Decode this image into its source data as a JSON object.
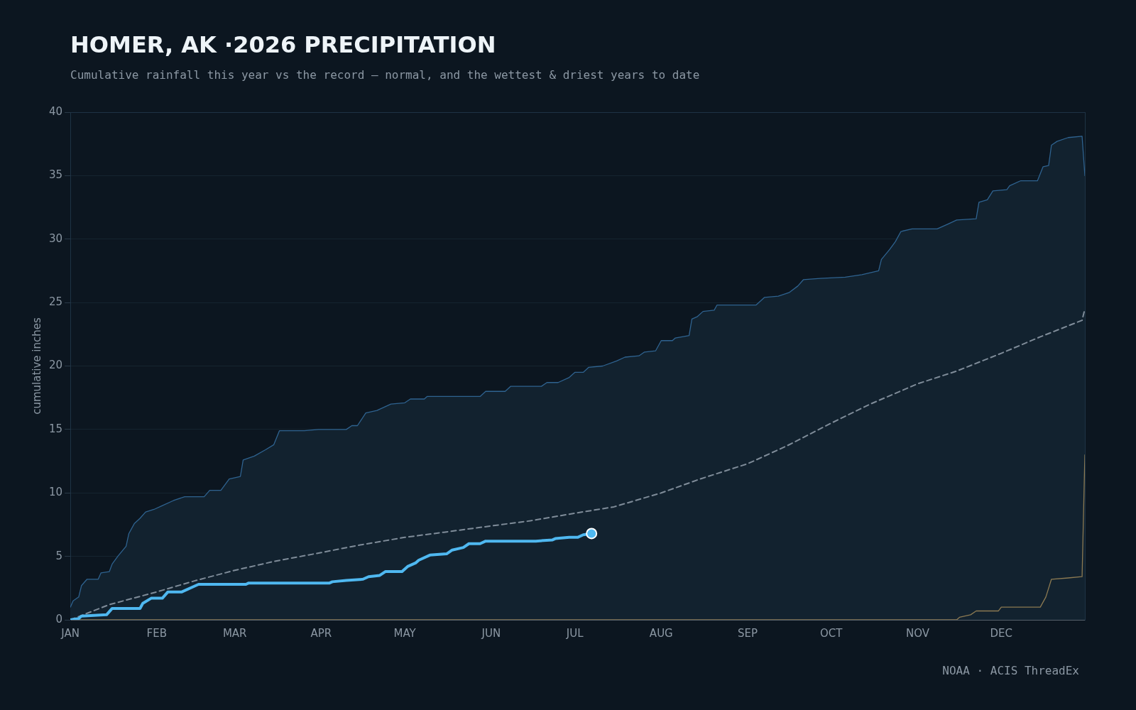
{
  "chart_data": {
    "type": "line",
    "title": "HOMER, AK ·2026 PRECIPITATION",
    "subtitle": "Cumulative rainfall this year vs the record — normal, and the wettest & driest years to date",
    "ylabel": "cumulative inches",
    "annotations": [
      "NOAA · ACIS ThreadEx"
    ],
    "xlim": [
      "--01-01",
      "--12-31"
    ],
    "xticks": [
      {
        "value": "--01-01",
        "label": "JAN"
      },
      {
        "value": "--02-01",
        "label": "FEB"
      },
      {
        "value": "--03-01",
        "label": "MAR"
      },
      {
        "value": "--04-01",
        "label": "APR"
      },
      {
        "value": "--05-01",
        "label": "MAY"
      },
      {
        "value": "--06-01",
        "label": "JUN"
      },
      {
        "value": "--07-01",
        "label": "JUL"
      },
      {
        "value": "--08-01",
        "label": "AUG"
      },
      {
        "value": "--09-01",
        "label": "SEP"
      },
      {
        "value": "--10-01",
        "label": "OCT"
      },
      {
        "value": "--11-01",
        "label": "NOV"
      },
      {
        "value": "--12-01",
        "label": "DEC"
      }
    ],
    "ylim": [
      0,
      40
    ],
    "yticks": [
      0,
      5,
      10,
      15,
      20,
      25,
      30,
      35,
      40
    ],
    "grid": "y",
    "legend": false,
    "series": [
      {
        "type": "area",
        "color": "#2f6390",
        "x": [
          "--01-01",
          "--01-02",
          "--01-04",
          "--01-05",
          "--01-07",
          "--01-11",
          "--01-12",
          "--01-15",
          "--01-16",
          "--01-18",
          "--01-21",
          "--01-22",
          "--01-24",
          "--01-26",
          "--01-28",
          "--01-31",
          "--02-03",
          "--02-07",
          "--02-11",
          "--02-18",
          "--02-20",
          "--02-24",
          "--02-27",
          "--03-03",
          "--03-04",
          "--03-08",
          "--03-12",
          "--03-15",
          "--03-17",
          "--03-26",
          "--03-31",
          "--04-10",
          "--04-12",
          "--04-14",
          "--04-17",
          "--04-21",
          "--04-26",
          "--05-01",
          "--05-03",
          "--05-08",
          "--05-09",
          "--05-28",
          "--05-30",
          "--06-06",
          "--06-08",
          "--06-19",
          "--06-21",
          "--06-25",
          "--06-29",
          "--07-01",
          "--07-04",
          "--07-06",
          "--07-11",
          "--07-16",
          "--07-19",
          "--07-24",
          "--07-26",
          "--07-30",
          "--08-01",
          "--08-05",
          "--08-06",
          "--08-11",
          "--08-12",
          "--08-14",
          "--08-16",
          "--08-20",
          "--08-21",
          "--09-04",
          "--09-07",
          "--09-12",
          "--09-16",
          "--09-19",
          "--09-21",
          "--09-27",
          "--10-06",
          "--10-12",
          "--10-18",
          "--10-19",
          "--10-22",
          "--10-24",
          "--10-26",
          "--10-30",
          "--11-08",
          "--11-12",
          "--11-15",
          "--11-22",
          "--11-23",
          "--11-26",
          "--11-28",
          "--12-03",
          "--12-04",
          "--12-08",
          "--12-14",
          "--12-16",
          "--12-18",
          "--12-19",
          "--12-21",
          "--12-25",
          "--12-30",
          "--12-31"
        ],
        "values": [
          1.0,
          1.5,
          1.8,
          2.7,
          3.2,
          3.2,
          3.7,
          3.8,
          4.4,
          5.0,
          5.8,
          6.8,
          7.6,
          8.0,
          8.5,
          8.7,
          9.0,
          9.4,
          9.7,
          9.7,
          10.2,
          10.2,
          11.1,
          11.3,
          12.6,
          12.9,
          13.4,
          13.8,
          14.9,
          14.9,
          15.0,
          15.0,
          15.3,
          15.3,
          16.3,
          16.5,
          17.0,
          17.1,
          17.4,
          17.4,
          17.6,
          17.6,
          18.0,
          18.0,
          18.4,
          18.4,
          18.7,
          18.7,
          19.1,
          19.5,
          19.5,
          19.9,
          20.0,
          20.4,
          20.7,
          20.8,
          21.1,
          21.2,
          22.0,
          22.0,
          22.2,
          22.4,
          23.7,
          23.9,
          24.3,
          24.4,
          24.8,
          24.8,
          25.4,
          25.5,
          25.8,
          26.3,
          26.8,
          26.9,
          27.0,
          27.2,
          27.5,
          28.4,
          29.2,
          29.8,
          30.6,
          30.8,
          30.8,
          31.2,
          31.5,
          31.6,
          32.9,
          33.1,
          33.8,
          33.9,
          34.2,
          34.6,
          34.6,
          35.7,
          35.8,
          37.4,
          37.7,
          38.0,
          38.1,
          35.0
        ]
      },
      {
        "type": "line",
        "color": "#8c7a52",
        "x": [
          "--01-01",
          "--11-15",
          "--11-16",
          "--11-20",
          "--11-22",
          "--11-30",
          "--12-01",
          "--12-15",
          "--12-17",
          "--12-19",
          "--12-25",
          "--12-30",
          "--12-31"
        ],
        "values": [
          0,
          0,
          0.2,
          0.4,
          0.7,
          0.7,
          1.0,
          1.0,
          1.8,
          3.2,
          3.3,
          3.4,
          13.0
        ]
      },
      {
        "type": "line",
        "color": "#7f8c99",
        "line_style": "dashed",
        "x": [
          "--01-01",
          "--01-15",
          "--02-01",
          "--02-15",
          "--03-01",
          "--03-15",
          "--04-01",
          "--04-15",
          "--05-01",
          "--05-15",
          "--06-01",
          "--06-15",
          "--07-01",
          "--07-15",
          "--08-01",
          "--08-15",
          "--09-01",
          "--09-15",
          "--10-01",
          "--10-15",
          "--11-01",
          "--11-15",
          "--12-01",
          "--12-15",
          "--12-30",
          "--12-31"
        ],
        "values": [
          0,
          1.2,
          2.2,
          3.1,
          3.9,
          4.6,
          5.3,
          5.9,
          6.5,
          6.9,
          7.4,
          7.8,
          8.4,
          8.9,
          10.0,
          11.1,
          12.3,
          13.7,
          15.5,
          17.0,
          18.6,
          19.6,
          21.0,
          22.3,
          23.6,
          24.5
        ]
      },
      {
        "type": "line",
        "color": "#4fb8f0",
        "x": [
          "--01-01",
          "--01-04",
          "--01-05",
          "--01-14",
          "--01-16",
          "--01-26",
          "--01-27",
          "--01-30",
          "--02-03",
          "--02-05",
          "--02-10",
          "--02-15",
          "--02-16",
          "--03-05",
          "--03-06",
          "--04-04",
          "--04-05",
          "--04-10",
          "--04-16",
          "--04-18",
          "--04-22",
          "--04-24",
          "--04-30",
          "--05-02",
          "--05-05",
          "--05-06",
          "--05-10",
          "--05-16",
          "--05-18",
          "--05-22",
          "--05-24",
          "--05-28",
          "--05-30",
          "--06-17",
          "--06-23",
          "--06-24",
          "--06-29",
          "--07-02",
          "--07-04",
          "--07-07"
        ],
        "values": [
          0,
          0.1,
          0.3,
          0.4,
          0.9,
          0.9,
          1.3,
          1.7,
          1.7,
          2.2,
          2.2,
          2.7,
          2.8,
          2.8,
          2.9,
          2.9,
          3.0,
          3.1,
          3.2,
          3.4,
          3.5,
          3.8,
          3.8,
          4.2,
          4.5,
          4.7,
          5.1,
          5.2,
          5.5,
          5.7,
          6.0,
          6.0,
          6.2,
          6.2,
          6.3,
          6.4,
          6.5,
          6.5,
          6.7,
          6.8
        ]
      },
      {
        "type": "scatter",
        "color": "#4fb8f0",
        "marker": "circle",
        "x": [
          "--07-07"
        ],
        "values": [
          6.8
        ]
      }
    ]
  }
}
